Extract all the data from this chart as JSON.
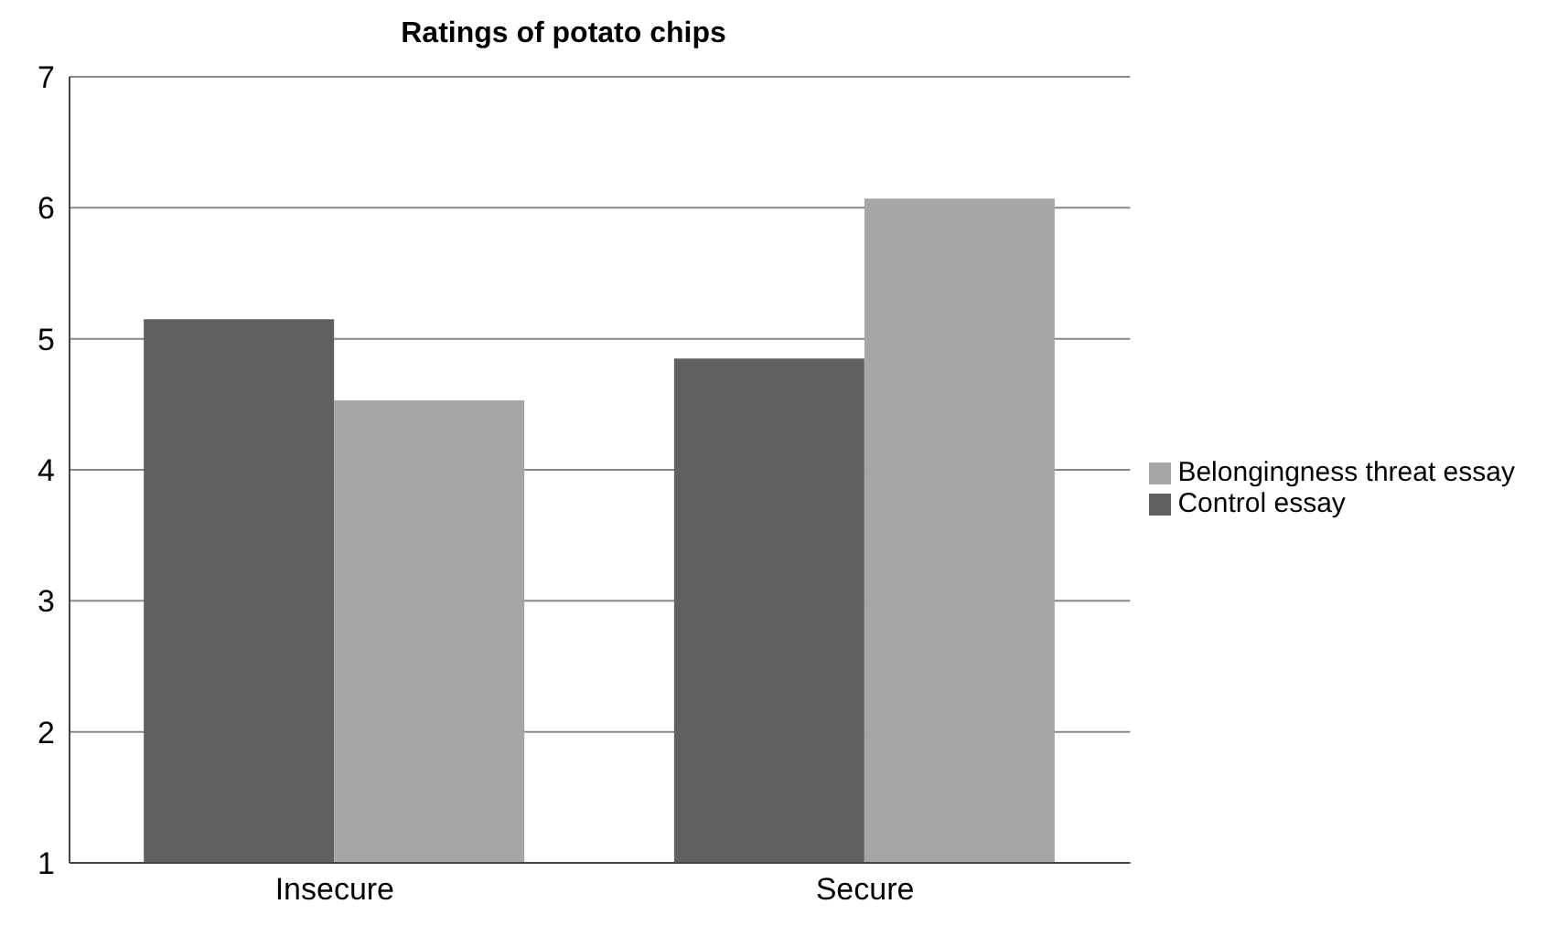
{
  "chart_data": {
    "type": "bar",
    "title": "Ratings of potato chips",
    "categories": [
      "Insecure",
      "Secure"
    ],
    "series": [
      {
        "name": "Control essay",
        "color": "#606060",
        "values": [
          5.15,
          4.85
        ]
      },
      {
        "name": "Belongingness threat essay",
        "color": "#a6a6a6",
        "values": [
          4.53,
          6.07
        ]
      }
    ],
    "ylim": [
      1,
      7
    ],
    "yticks": [
      1,
      2,
      3,
      4,
      5,
      6,
      7
    ],
    "grid": "y",
    "legend": "right"
  }
}
